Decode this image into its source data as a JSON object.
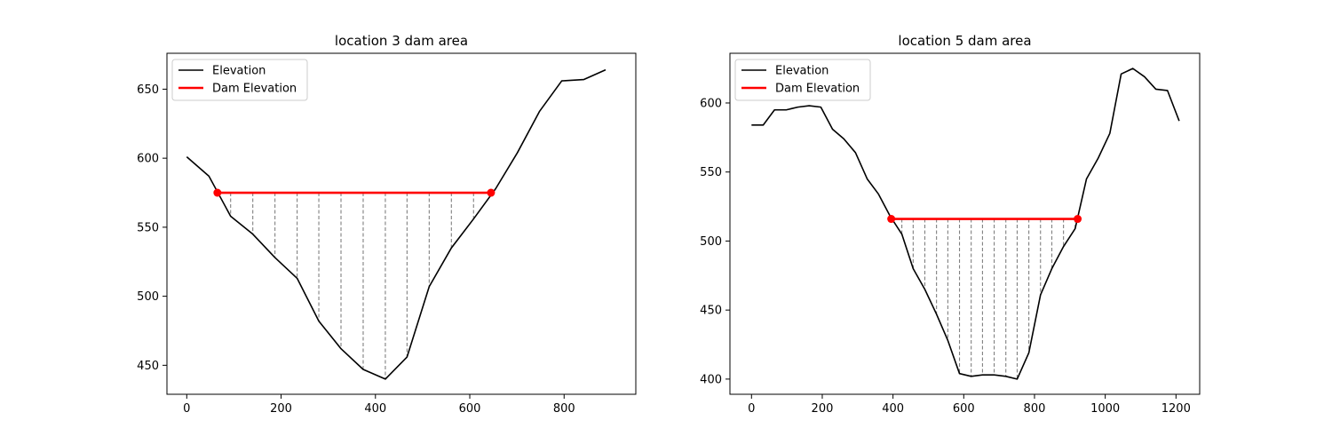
{
  "chart_data": [
    {
      "type": "line",
      "title": "location 3 dam area",
      "xlabel": "",
      "ylabel": "",
      "xlim": [
        -42,
        952
      ],
      "ylim": [
        429,
        676
      ],
      "xticks": [
        0,
        200,
        400,
        600,
        800
      ],
      "yticks": [
        450,
        500,
        550,
        600,
        650
      ],
      "legend": {
        "placement": "top-left",
        "entries": [
          "Elevation",
          "Dam Elevation"
        ]
      },
      "grid": false,
      "colors": {
        "elevation": "#000000",
        "dam": "#ff0000",
        "fill_lines": "#808080"
      },
      "series": [
        {
          "name": "Elevation",
          "x": [
            0,
            47,
            93,
            140,
            187,
            234,
            280,
            327,
            374,
            421,
            467,
            514,
            561,
            608,
            655,
            701,
            748,
            795,
            842,
            888
          ],
          "y": [
            601,
            587,
            558,
            545,
            528,
            513,
            482,
            462,
            447,
            440,
            456,
            507,
            535,
            556,
            578,
            604,
            634,
            656,
            657,
            664
          ]
        },
        {
          "name": "Dam Elevation",
          "x": [
            65,
            645
          ],
          "y": [
            575,
            575
          ]
        }
      ],
      "dam_elevation": 575,
      "dam_endpoints_x": [
        65,
        645
      ],
      "fill_x": [
        93,
        140,
        187,
        234,
        280,
        327,
        374,
        421,
        467,
        514,
        561,
        608
      ]
    },
    {
      "type": "line",
      "title": "location 5 dam area",
      "xlabel": "",
      "ylabel": "",
      "xlim": [
        -61,
        1267
      ],
      "ylim": [
        389,
        636
      ],
      "xticks": [
        0,
        200,
        400,
        600,
        800,
        1000,
        1200
      ],
      "yticks": [
        400,
        450,
        500,
        550,
        600
      ],
      "legend": {
        "placement": "top-left",
        "entries": [
          "Elevation",
          "Dam Elevation"
        ]
      },
      "grid": false,
      "colors": {
        "elevation": "#000000",
        "dam": "#ff0000",
        "fill_lines": "#808080"
      },
      "series": [
        {
          "name": "Elevation",
          "x": [
            0,
            33,
            65,
            98,
            131,
            163,
            196,
            229,
            261,
            294,
            327,
            359,
            392,
            425,
            457,
            490,
            523,
            555,
            588,
            621,
            653,
            686,
            719,
            751,
            784,
            817,
            849,
            882,
            915,
            947,
            980,
            1013,
            1045,
            1078,
            1111,
            1143,
            1176,
            1209
          ],
          "y": [
            584,
            584,
            595,
            595,
            597,
            598,
            597,
            581,
            574,
            564,
            545,
            534,
            518,
            505,
            480,
            465,
            447,
            428,
            404,
            402,
            403,
            403,
            402,
            400,
            419,
            461,
            480,
            496,
            509,
            545,
            560,
            578,
            621,
            625,
            619,
            610,
            609,
            587
          ]
        },
        {
          "name": "Dam Elevation",
          "x": [
            395,
            922
          ],
          "y": [
            516,
            516
          ]
        }
      ],
      "dam_elevation": 516,
      "dam_endpoints_x": [
        395,
        922
      ],
      "fill_x": [
        425,
        457,
        490,
        523,
        555,
        588,
        621,
        653,
        686,
        719,
        751,
        784,
        817,
        849,
        882,
        915
      ]
    }
  ]
}
